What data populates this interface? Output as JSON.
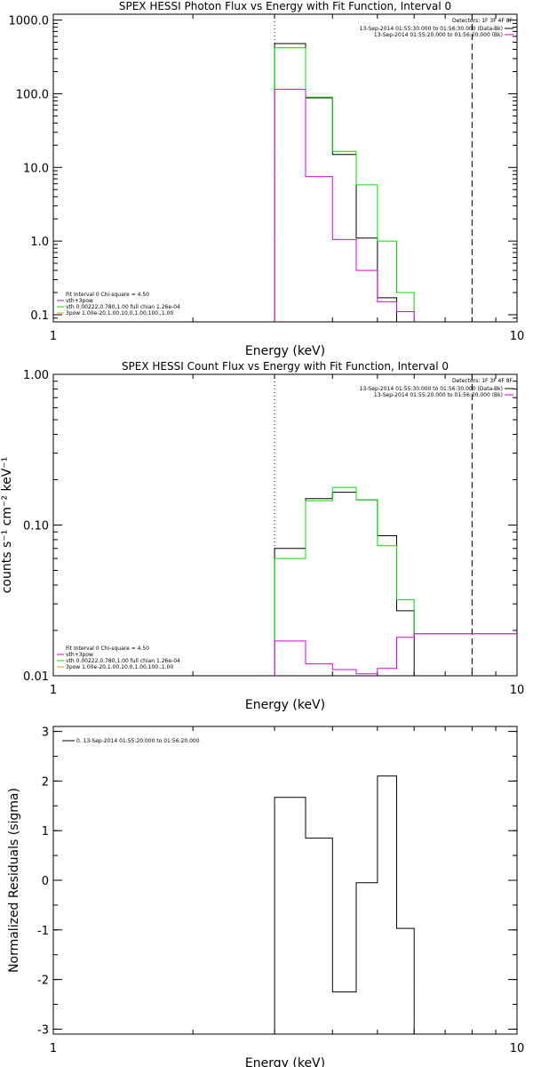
{
  "chart_data": [
    {
      "type": "line",
      "title": "SPEX HESSI Photon Flux vs Energy with Fit Function, Interval 0",
      "xlabel": "Energy (keV)",
      "ylabel": "",
      "xscale": "log",
      "yscale": "log",
      "xlim": [
        1,
        10
      ],
      "ylim": [
        0.08,
        1200
      ],
      "xticks": [
        {
          "v": 1,
          "label": "1"
        },
        {
          "v": 10,
          "label": "10"
        }
      ],
      "yticks": [
        {
          "v": 0.1,
          "label": "0.1"
        },
        {
          "v": 1,
          "label": "1.0"
        },
        {
          "v": 10,
          "label": "10.0"
        },
        {
          "v": 100,
          "label": "100.0"
        },
        {
          "v": 1000,
          "label": "1000.0"
        }
      ],
      "bin_edges": [
        3.0,
        3.5,
        4.0,
        4.5,
        5.0,
        5.5,
        6.0,
        6.5,
        7.0,
        8.0
      ],
      "vlines": [
        {
          "x": 3.0,
          "style": "dotted"
        },
        {
          "x": 8.0,
          "style": "dashed"
        }
      ],
      "series": [
        {
          "name": "Data",
          "color": "#000000",
          "values": [
            480,
            88,
            15,
            1.1,
            0.17
          ]
        },
        {
          "color": "#00dd00",
          "values": [
            420,
            90,
            16.5,
            5.8,
            1.0,
            0.2
          ],
          "edges": [
            3.0,
            3.5,
            4.0,
            4.5,
            5.0,
            5.5,
            6.0
          ]
        },
        {
          "color": "#dd00dd",
          "values": [
            115,
            7.5,
            1.05,
            0.4,
            0.15,
            0.11
          ],
          "edges": [
            3.0,
            3.5,
            4.0,
            4.5,
            5.0,
            5.5,
            6.0
          ]
        }
      ],
      "legend_top": {
        "title": "Detectors: 1F 3F 4F 8F",
        "lines": [
          {
            "text": "13-Sep-2014 01:55:30.000 to 01:56:30.000 (Data-Bk)",
            "color": "#000000"
          },
          {
            "text": "13-Sep-2014 01:55:20.000 to 01:56:20.000 (Bk)",
            "color": "#dd00dd"
          }
        ]
      },
      "legend_bottom": [
        {
          "text": "Fit Interval 0   Chi-square = 4.50",
          "color": ""
        },
        {
          "text": "vth+3pow",
          "color": "#dd00dd"
        },
        {
          "text": "vth 0.00222,0.780,1.00   full chian 1.26e-04",
          "color": "#00dd00"
        },
        {
          "text": "3pow 1.00e-20,1.00,10.0,1.00,100.,1.00",
          "color": "#e8a000"
        }
      ]
    },
    {
      "type": "line",
      "title": "SPEX HESSI Count Flux vs Energy with Fit Function, Interval 0",
      "xlabel": "Energy (keV)",
      "ylabel": "counts s⁻¹ cm⁻² keV⁻¹",
      "xscale": "log",
      "yscale": "log",
      "xlim": [
        1,
        10
      ],
      "ylim": [
        0.01,
        1.0
      ],
      "xticks": [
        {
          "v": 1,
          "label": "1"
        },
        {
          "v": 10,
          "label": "10"
        }
      ],
      "yticks": [
        {
          "v": 0.01,
          "label": "0.01"
        },
        {
          "v": 0.1,
          "label": "0.10"
        },
        {
          "v": 1,
          "label": "1.00"
        }
      ],
      "bin_edges": [
        3.0,
        3.5,
        4.0,
        4.5,
        5.0,
        5.5,
        6.0,
        6.5,
        7.0,
        8.0
      ],
      "vlines": [
        {
          "x": 3.0,
          "style": "dotted"
        },
        {
          "x": 8.0,
          "style": "dashed"
        }
      ],
      "series": [
        {
          "color": "#000000",
          "values": [
            0.07,
            0.15,
            0.165,
            0.147,
            0.085,
            0.027
          ]
        },
        {
          "color": "#00dd00",
          "values": [
            0.06,
            0.145,
            0.178,
            0.147,
            0.073,
            0.032,
            0.019
          ],
          "edges": [
            3.0,
            3.5,
            4.0,
            4.5,
            5.0,
            5.5,
            6.0,
            10.0
          ]
        },
        {
          "color": "#dd00dd",
          "values": [
            0.017,
            0.012,
            0.011,
            0.0103,
            0.0112,
            0.018,
            0.019
          ],
          "edges": [
            3.0,
            3.5,
            4.0,
            4.5,
            5.0,
            5.5,
            6.0,
            10.0
          ]
        }
      ],
      "legend_top": {
        "title": "Detectors: 1F 3F 4F 8F",
        "lines": [
          {
            "text": "13-Sep-2014 01:55:30.000 to 01:56:30.000 (Data-Bk)",
            "color": "#000000"
          },
          {
            "text": "13-Sep-2014 01:55:20.000 to 01:56:20.000 (Bk)",
            "color": "#dd00dd"
          }
        ]
      },
      "legend_bottom": [
        {
          "text": "Fit Interval 0   Chi-square = 4.50",
          "color": ""
        },
        {
          "text": "vth+3pow",
          "color": "#dd00dd"
        },
        {
          "text": "vth 0.00222,0.780,1.00   full chian 1.26e-04",
          "color": "#00dd00"
        },
        {
          "text": "3pow 1.00e-20,1.00,10.0,1.00,100.,1.00",
          "color": "#e8a000"
        }
      ]
    },
    {
      "type": "line",
      "title": "",
      "xlabel": "Energy (keV)",
      "ylabel": "Normalized Residuals (sigma)",
      "xscale": "log",
      "yscale": "linear",
      "xlim": [
        1,
        10
      ],
      "ylim": [
        -3.1,
        3.1
      ],
      "xticks": [
        {
          "v": 1,
          "label": "1"
        },
        {
          "v": 10,
          "label": "10"
        }
      ],
      "yticks": [
        {
          "v": -3,
          "label": "-3"
        },
        {
          "v": -2,
          "label": "-2"
        },
        {
          "v": -1,
          "label": "-1"
        },
        {
          "v": 0,
          "label": "0"
        },
        {
          "v": 1,
          "label": "1"
        },
        {
          "v": 2,
          "label": "2"
        },
        {
          "v": 3,
          "label": "3"
        }
      ],
      "bin_edges": [
        3.0,
        3.5,
        4.0,
        4.5,
        5.0,
        5.5,
        6.0,
        6.5,
        7.0,
        8.0
      ],
      "vlines": [],
      "series": [
        {
          "color": "#000000",
          "values": [
            1.67,
            0.85,
            -2.25,
            -0.05,
            2.1,
            -0.97
          ],
          "drop_ends": true
        }
      ],
      "legend_top_left": {
        "text": "0. 13-Sep-2014 01:55:20.000 to 01:56:20.000",
        "color": "#000000"
      }
    }
  ]
}
